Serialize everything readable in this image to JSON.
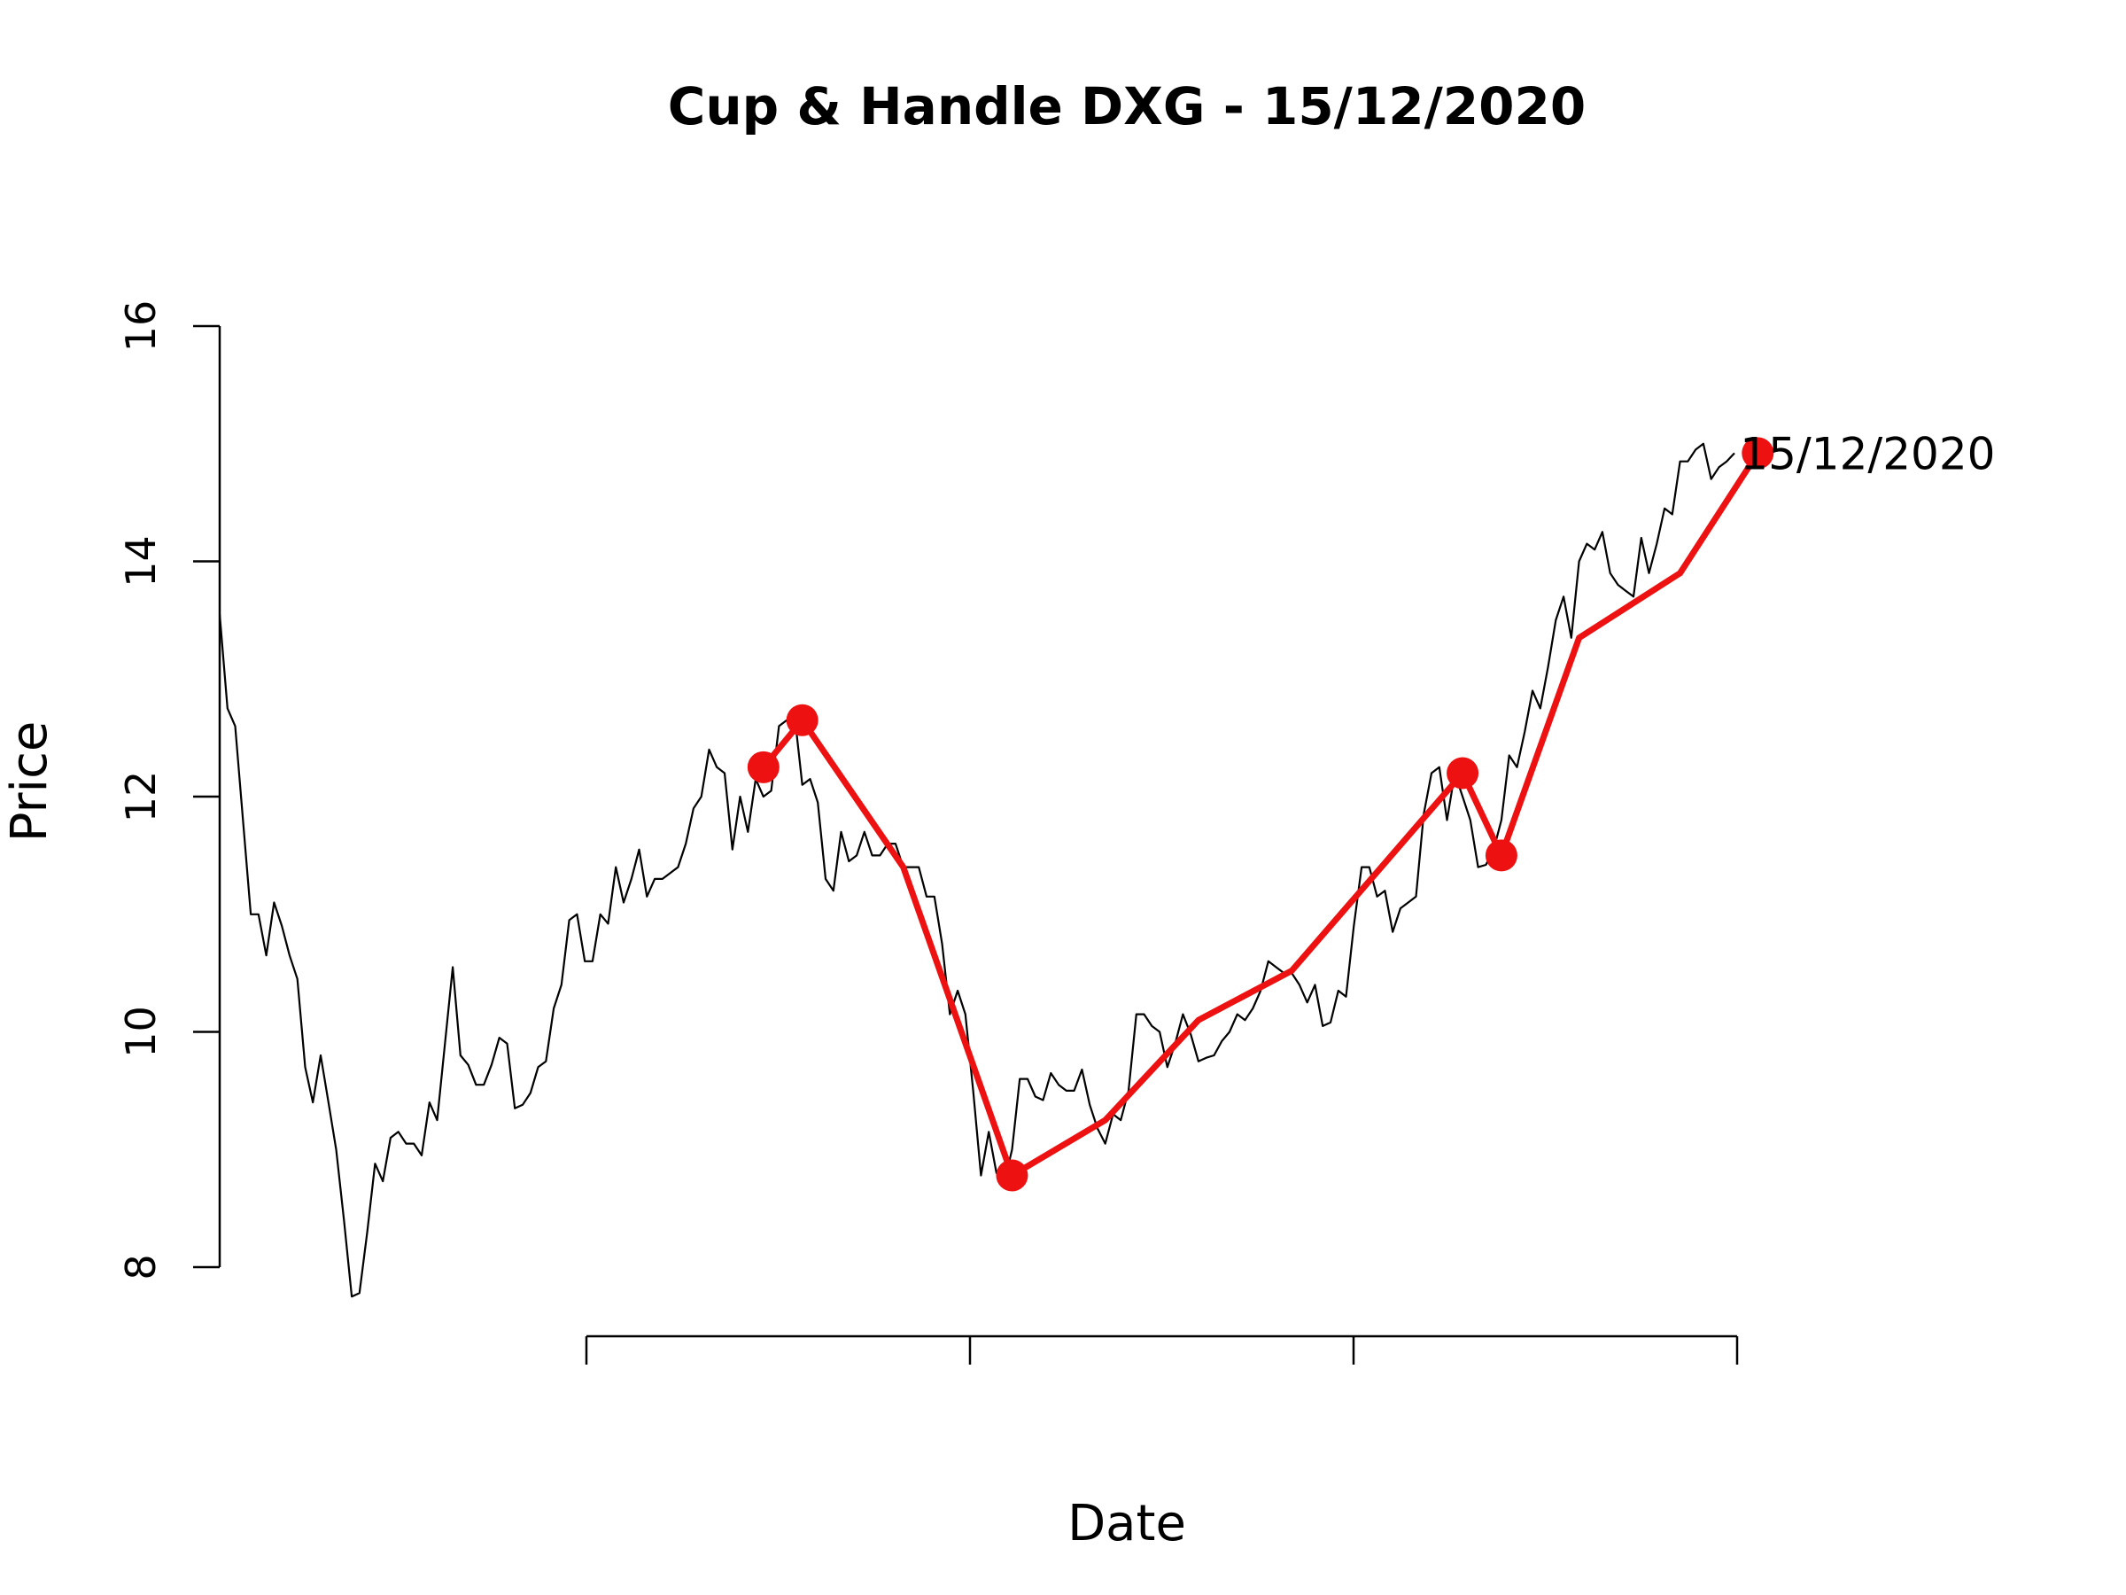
{
  "chart_data": {
    "type": "line",
    "title": "Cup & Handle DXG - 15/12/2020",
    "xlabel": "Date",
    "ylabel": "Price",
    "ylim": [
      8,
      16
    ],
    "yticks": [
      "8",
      "10",
      "12",
      "14",
      "16"
    ],
    "x_ticks_count": 4,
    "grid": false,
    "series": [
      {
        "color": "#000000",
        "values": [
          13.55,
          12.75,
          12.6,
          11.8,
          11.0,
          11.0,
          10.65,
          11.1,
          10.9,
          10.65,
          10.45,
          9.7,
          9.4,
          9.8,
          9.4,
          9.0,
          8.4,
          7.75,
          7.78,
          8.3,
          8.88,
          8.73,
          9.1,
          9.15,
          9.05,
          9.05,
          8.95,
          9.4,
          9.25,
          9.9,
          10.55,
          9.8,
          9.72,
          9.55,
          9.55,
          9.72,
          9.95,
          9.9,
          9.35,
          9.38,
          9.48,
          9.7,
          9.75,
          10.2,
          10.4,
          10.95,
          11.0,
          10.6,
          10.6,
          11.0,
          10.92,
          11.4,
          11.1,
          11.3,
          11.55,
          11.15,
          11.3,
          11.3,
          11.35,
          11.4,
          11.6,
          11.9,
          12.0,
          12.4,
          12.25,
          12.2,
          11.55,
          12.0,
          11.7,
          12.15,
          12.0,
          12.05,
          12.6,
          12.65,
          12.7,
          12.1,
          12.15,
          11.95,
          11.3,
          11.2,
          11.7,
          11.45,
          11.5,
          11.7,
          11.5,
          11.5,
          11.6,
          11.6,
          11.4,
          11.4,
          11.4,
          11.15,
          11.15,
          10.75,
          10.15,
          10.35,
          10.15,
          9.5,
          8.78,
          9.15,
          8.8,
          8.72,
          9.0,
          9.6,
          9.6,
          9.45,
          9.42,
          9.65,
          9.55,
          9.5,
          9.5,
          9.68,
          9.38,
          9.18,
          9.05,
          9.3,
          9.25,
          9.5,
          10.15,
          10.15,
          10.05,
          10.0,
          9.7,
          9.9,
          10.15,
          9.98,
          9.75,
          9.78,
          9.8,
          9.92,
          10.0,
          10.15,
          10.1,
          10.2,
          10.35,
          10.6,
          10.55,
          10.5,
          10.5,
          10.4,
          10.25,
          10.4,
          10.05,
          10.08,
          10.35,
          10.3,
          10.9,
          11.4,
          11.4,
          11.15,
          11.2,
          10.85,
          11.05,
          11.1,
          11.15,
          11.85,
          12.2,
          12.25,
          11.8,
          12.2,
          12.0,
          11.8,
          11.4,
          11.42,
          11.55,
          11.8,
          12.35,
          12.25,
          12.55,
          12.9,
          12.75,
          13.1,
          13.5,
          13.7,
          13.35,
          14.0,
          14.15,
          14.1,
          14.25,
          13.9,
          13.8,
          13.75,
          13.7,
          14.2,
          13.9,
          14.15,
          14.45,
          14.4,
          14.85,
          14.85,
          14.95,
          15.0,
          14.7,
          14.8,
          14.85,
          14.92
        ]
      },
      {
        "color": "#ee1111",
        "x_index": [
          70,
          75,
          88,
          102,
          114,
          126,
          138,
          160,
          165,
          175,
          188,
          198
        ],
        "values": [
          12.25,
          12.65,
          11.4,
          8.78,
          9.25,
          10.1,
          10.52,
          12.2,
          11.5,
          13.35,
          13.9,
          14.92
        ],
        "markers": [
          0,
          1,
          3,
          7,
          8,
          11
        ]
      }
    ],
    "annotations": [
      {
        "text": "15/12/2020",
        "x_index": 198,
        "y": 14.92
      }
    ]
  }
}
